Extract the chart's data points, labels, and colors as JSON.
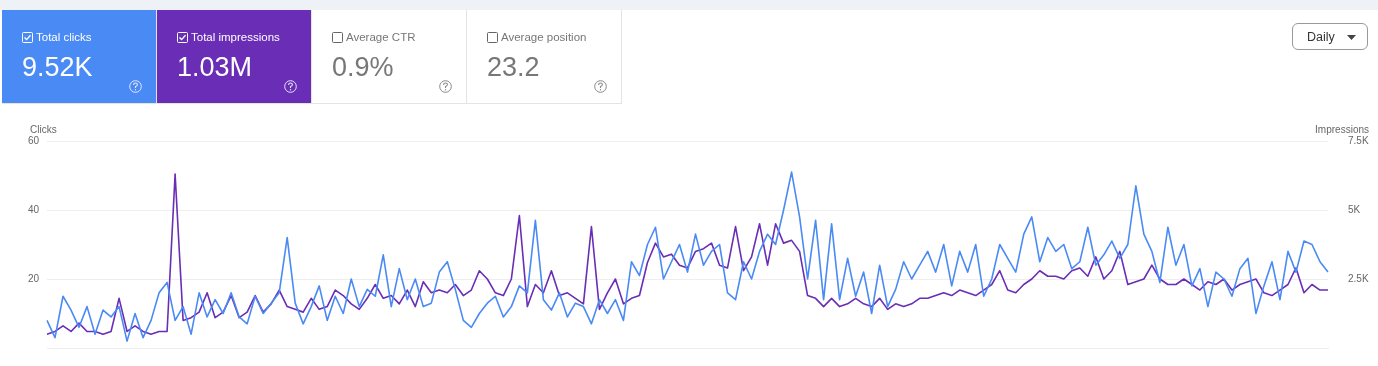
{
  "chart_data": {
    "type": "line",
    "ylabel": "Clicks",
    "y2label": "Impressions",
    "legend": "top left",
    "grid": "y",
    "marker": "none",
    "tick_labels": "y",
    "categories": [
      null,
      null,
      null,
      null,
      null,
      null,
      null,
      null,
      null,
      null,
      null,
      null,
      null,
      null,
      null,
      null,
      null,
      null,
      null,
      null,
      null,
      null,
      null,
      null,
      null,
      null,
      null,
      null,
      null,
      null,
      null,
      null,
      null,
      null,
      null,
      null,
      null,
      null,
      null,
      null,
      null,
      null,
      null,
      null,
      null,
      null,
      null,
      null,
      null,
      null,
      null,
      null,
      null,
      null,
      null,
      null,
      null,
      null,
      null,
      null,
      null,
      null,
      null,
      null,
      null,
      null,
      null,
      null,
      null,
      null,
      null,
      null,
      null,
      null,
      null,
      null,
      null,
      null,
      null,
      null,
      null,
      null,
      null,
      null,
      null,
      null,
      null,
      null,
      null,
      null,
      null,
      null,
      null,
      null,
      null,
      null,
      null,
      null,
      null,
      null,
      null,
      null,
      null,
      null,
      null,
      null,
      null,
      null,
      null,
      null,
      null,
      null,
      null,
      null,
      null,
      null,
      null,
      null,
      null,
      null,
      null,
      null,
      null,
      null,
      null,
      null,
      null,
      null,
      null,
      null,
      null,
      null,
      null,
      null,
      null,
      null,
      null,
      null,
      null,
      null,
      null,
      null,
      null,
      null,
      null,
      null,
      null,
      null,
      null,
      null,
      null,
      null,
      null,
      null,
      null,
      null,
      null,
      null,
      null,
      null,
      null
    ],
    "ylim": [
      0,
      60
    ],
    "yticks": [
      20,
      40,
      60
    ],
    "y2lim": [
      0,
      7500
    ],
    "y2ticks": [
      {
        "value": 2500,
        "label": "2.5K"
      },
      {
        "value": 5000,
        "label": "5K"
      },
      {
        "value": 7500,
        "label": "7.5K"
      }
    ],
    "annotations": [
      "9.52K",
      "1.03M",
      "Average CTR",
      "0.9%",
      "Average position",
      "23.2",
      "Daily"
    ],
    "series": [
      {
        "name": "Total clicks",
        "color": "#4a8af4",
        "values": [
          8,
          3,
          15,
          11,
          6,
          12,
          4,
          11,
          9,
          12,
          2,
          10,
          3,
          8,
          16,
          19,
          8,
          12,
          4,
          16,
          9,
          14,
          10,
          16,
          9,
          7,
          15,
          10,
          13,
          16,
          32,
          13,
          7,
          12,
          18,
          8,
          15,
          10,
          20,
          12,
          17,
          15,
          27,
          12,
          23,
          14,
          20,
          12,
          13,
          22,
          25,
          17,
          8,
          6,
          10,
          13,
          15,
          9,
          12,
          18,
          16,
          37,
          14,
          11,
          16,
          9,
          13,
          12,
          7,
          14,
          10,
          14,
          8,
          25,
          21,
          30,
          35,
          20,
          25,
          30,
          22,
          33,
          24,
          28,
          30,
          16,
          14,
          25,
          20,
          28,
          33,
          30,
          40,
          51,
          38,
          20,
          37,
          14,
          36,
          14,
          26,
          15,
          22,
          10,
          24,
          12,
          17,
          25,
          20,
          24,
          28,
          22,
          30,
          18,
          28,
          22,
          30,
          15,
          20,
          30,
          26,
          22,
          33,
          38,
          25,
          32,
          28,
          30,
          23,
          25,
          35,
          24,
          27,
          31,
          26,
          30,
          47,
          33,
          28,
          19,
          35,
          24,
          30,
          18,
          23,
          12,
          22,
          20,
          15,
          23,
          26,
          10,
          18,
          25,
          14,
          28,
          22,
          31,
          30,
          25,
          22
        ]
      },
      {
        "name": "Total impressions",
        "color": "#6a2db5",
        "axis": "y2",
        "values": [
          500,
          600,
          800,
          600,
          900,
          600,
          600,
          500,
          600,
          1800,
          600,
          800,
          600,
          500,
          600,
          600,
          6300,
          1000,
          1100,
          1300,
          2000,
          1100,
          1300,
          1900,
          1100,
          1300,
          1900,
          1300,
          1600,
          2100,
          1500,
          1400,
          1300,
          1800,
          1400,
          1500,
          2100,
          1900,
          1600,
          1400,
          1800,
          2300,
          1800,
          1900,
          1600,
          2100,
          1500,
          2400,
          2000,
          2100,
          2000,
          2300,
          1900,
          2100,
          2800,
          2500,
          2000,
          1900,
          2500,
          4800,
          1500,
          2300,
          2000,
          2800,
          1900,
          2000,
          1800,
          1600,
          4400,
          1400,
          2000,
          2500,
          1600,
          1800,
          1900,
          3100,
          3800,
          3300,
          3400,
          3000,
          2900,
          3500,
          3600,
          3800,
          3000,
          2900,
          4400,
          2800,
          3300,
          4500,
          3000,
          4500,
          3800,
          3900,
          3500,
          1900,
          1800,
          1500,
          1800,
          1500,
          1600,
          1800,
          1600,
          1500,
          1800,
          1400,
          1600,
          1500,
          1600,
          1800,
          1800,
          1900,
          2000,
          1900,
          2100,
          2000,
          1900,
          2100,
          2300,
          2800,
          2100,
          2000,
          2300,
          2500,
          2800,
          2600,
          2600,
          2500,
          2800,
          2900,
          2600,
          3300,
          2500,
          2800,
          3500,
          2300,
          2400,
          2500,
          3000,
          2500,
          2300,
          2300,
          2500,
          2300,
          2100,
          2400,
          2300,
          2500,
          2100,
          2300,
          2400,
          2500,
          2000,
          1900,
          2100,
          2300,
          2900,
          2000,
          2300,
          2100,
          2100
        ]
      }
    ]
  }
}
